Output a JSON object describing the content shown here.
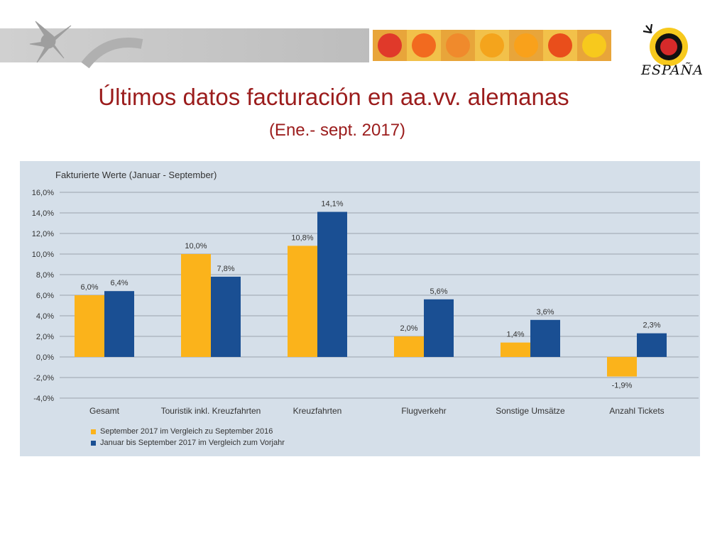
{
  "slide": {
    "title": "Últimos datos facturación en aa.vv. alemanas",
    "subtitle": "(Ene.- sept. 2017)",
    "logo_text": "ESPAÑA"
  },
  "colors": {
    "title": "#9b1c1c",
    "series1": "#fbb31b",
    "series2": "#1a4f93",
    "panel": "#d5dfe9",
    "banner": "#c8c8c8"
  },
  "tiles": [
    "#e0392a",
    "#f26a1f",
    "#f08a2c",
    "#f4a41c",
    "#f9a11b",
    "#e94e1b",
    "#f7c91d"
  ],
  "chart_data": {
    "type": "bar",
    "title": "Fakturierte Werte (Januar - September)",
    "categories": [
      "Gesamt",
      "Touristik  inkl. Kreuzfahrten",
      "Kreuzfahrten",
      "Flugverkehr",
      "Sonstige  Umsätze",
      "Anzahl  Tickets"
    ],
    "series": [
      {
        "name": "September 2017 im Vergleich zu September 2016",
        "color": "#fbb31b",
        "values": [
          6.0,
          10.0,
          10.8,
          2.0,
          1.4,
          -1.9
        ],
        "labels": [
          "6,0%",
          "10,0%",
          "10,8%",
          "2,0%",
          "1,4%",
          "-1,9%"
        ]
      },
      {
        "name": "Januar bis September 2017 im Vergleich zum Vorjahr",
        "color": "#1a4f93",
        "values": [
          6.4,
          7.8,
          14.1,
          5.6,
          3.6,
          2.3
        ],
        "labels": [
          "6,4%",
          "7,8%",
          "14,1%",
          "5,6%",
          "3,6%",
          "2,3%"
        ]
      }
    ],
    "ylim": [
      -4,
      16
    ],
    "yticks": [
      16,
      14,
      12,
      10,
      8,
      6,
      4,
      2,
      0,
      -2,
      -4
    ],
    "ytick_labels": [
      "16,0%",
      "14,0%",
      "12,0%",
      "10,0%",
      "8,0%",
      "6,0%",
      "4,0%",
      "2,0%",
      "0,0%",
      "-2,0%",
      "-4,0%"
    ],
    "grid": true,
    "legend": "bottom-left"
  }
}
